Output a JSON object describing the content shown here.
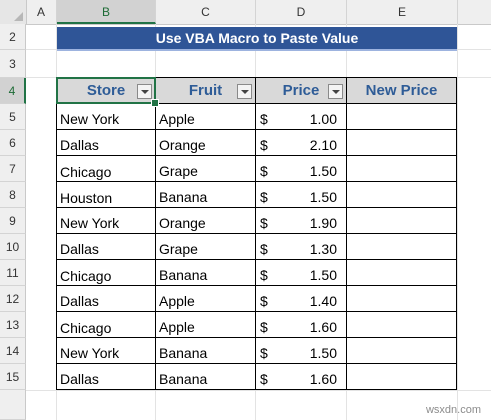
{
  "columns": [
    "A",
    "B",
    "C",
    "D",
    "E"
  ],
  "rows": [
    "2",
    "3",
    "4",
    "5",
    "6",
    "7",
    "8",
    "9",
    "10",
    "11",
    "12",
    "13",
    "14",
    "15"
  ],
  "title": "Use VBA Macro to Paste Value",
  "headers": {
    "store": "Store",
    "fruit": "Fruit",
    "price": "Price",
    "new_price": "New Price"
  },
  "data": [
    {
      "store": "New York",
      "fruit": "Apple",
      "currency": "$",
      "price": "1.00"
    },
    {
      "store": "Dallas",
      "fruit": "Orange",
      "currency": "$",
      "price": "2.10"
    },
    {
      "store": "Chicago",
      "fruit": "Grape",
      "currency": "$",
      "price": "1.50"
    },
    {
      "store": "Houston",
      "fruit": "Banana",
      "currency": "$",
      "price": "1.50"
    },
    {
      "store": "New York",
      "fruit": "Orange",
      "currency": "$",
      "price": "1.90"
    },
    {
      "store": "Dallas",
      "fruit": "Grape",
      "currency": "$",
      "price": "1.30"
    },
    {
      "store": "Chicago",
      "fruit": "Banana",
      "currency": "$",
      "price": "1.50"
    },
    {
      "store": "Dallas",
      "fruit": "Apple",
      "currency": "$",
      "price": "1.40"
    },
    {
      "store": "Chicago",
      "fruit": "Apple",
      "currency": "$",
      "price": "1.60"
    },
    {
      "store": "New York",
      "fruit": "Banana",
      "currency": "$",
      "price": "1.50"
    },
    {
      "store": "Dallas",
      "fruit": "Banana",
      "currency": "$",
      "price": "1.60"
    }
  ],
  "watermark": "wsxdn.com",
  "colors": {
    "title_bg": "#2f5597",
    "header_text": "#2e5c97",
    "header_bg": "#d9d9d9",
    "selection": "#217346"
  }
}
